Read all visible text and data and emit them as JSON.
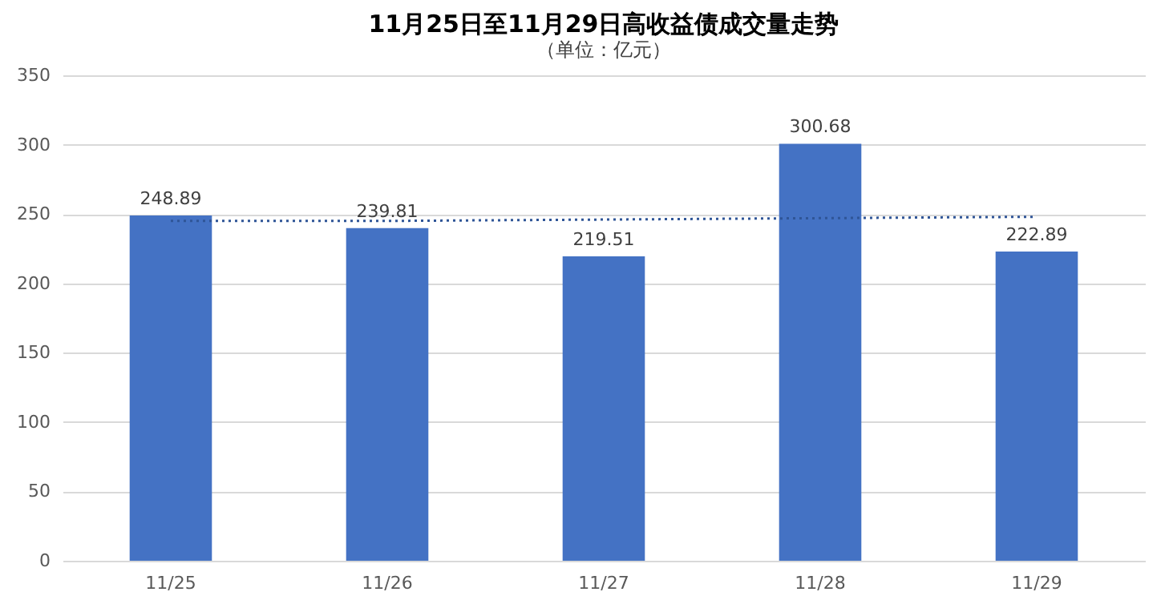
{
  "chart_data": {
    "type": "bar",
    "title": "11月25日至11月29日高收益债成交量走势",
    "subtitle": "（单位：亿元）",
    "categories": [
      "11/25",
      "11/26",
      "11/27",
      "11/28",
      "11/29"
    ],
    "series": [
      {
        "color": "#4472c4",
        "values": [
          248.89,
          239.81,
          219.51,
          300.68,
          222.89
        ],
        "value_labels": [
          "248.89",
          "239.81",
          "219.51",
          "300.68",
          "222.89"
        ]
      },
      {
        "type": "line",
        "color": "#2f5597",
        "line_style": "dotted",
        "marker": "none",
        "values": [
          245,
          245,
          246,
          247,
          248
        ]
      }
    ],
    "ylim": [
      0,
      350
    ],
    "yticks": [
      0,
      50,
      100,
      150,
      200,
      250,
      300,
      350
    ],
    "grid": "y"
  }
}
